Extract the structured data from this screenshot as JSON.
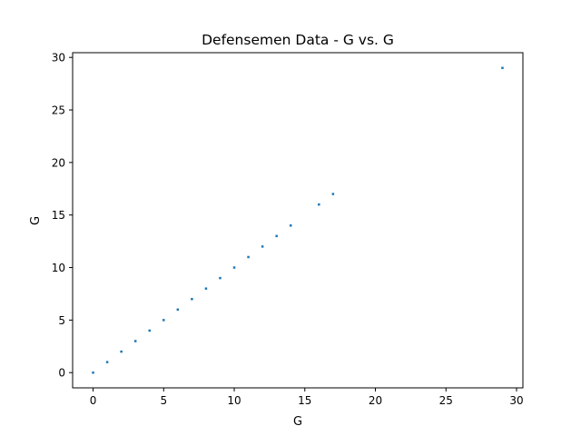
{
  "chart_data": {
    "type": "scatter",
    "title": "Defensemen Data - G vs. G",
    "xlabel": "G",
    "ylabel": "G",
    "xlim": [
      -1.45,
      30.45
    ],
    "ylim": [
      -1.45,
      30.45
    ],
    "xticks": [
      0,
      5,
      10,
      15,
      20,
      25,
      30
    ],
    "yticks": [
      0,
      5,
      10,
      15,
      20,
      25,
      30
    ],
    "grid": false,
    "marker_color": "#1f77b4",
    "series": [
      {
        "x": [
          0,
          1,
          2,
          3,
          4,
          5,
          6,
          7,
          8,
          9,
          10,
          11,
          12,
          13,
          14,
          16,
          17,
          29
        ],
        "y": [
          0,
          1,
          2,
          3,
          4,
          5,
          6,
          7,
          8,
          9,
          10,
          11,
          12,
          13,
          14,
          16,
          17,
          29
        ]
      }
    ]
  }
}
